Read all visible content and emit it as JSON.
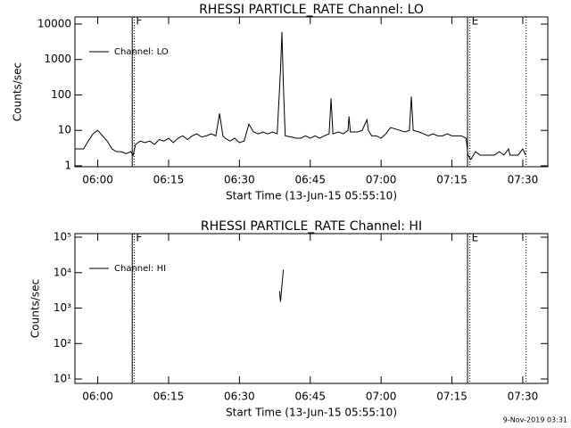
{
  "chart_data": [
    {
      "type": "line",
      "title": "RHESSI PARTICLE_RATE Channel: LO",
      "xlabel": "Start Time (13-Jun-15 05:55:10)",
      "ylabel": "Counts/sec",
      "log_y": true,
      "legend": "upper left",
      "xlim": [
        355.17,
        455.3
      ],
      "xticks": [
        {
          "value": 360,
          "label": "06:00"
        },
        {
          "value": 375,
          "label": "06:15"
        },
        {
          "value": 390,
          "label": "06:30"
        },
        {
          "value": 405,
          "label": "06:45"
        },
        {
          "value": 420,
          "label": "07:00"
        },
        {
          "value": 435,
          "label": "07:15"
        },
        {
          "value": 450,
          "label": "07:30"
        }
      ],
      "ylim": [
        0.94,
        15900
      ],
      "yticks": [
        1,
        10,
        100,
        1000,
        10000
      ],
      "vlines": [
        {
          "x": 367.3,
          "style": "solid"
        },
        {
          "x": 367.7,
          "style": "dotted",
          "label": "F"
        },
        {
          "x": 438.3,
          "style": "solid"
        },
        {
          "x": 438.8,
          "style": "dotted",
          "label": "E"
        },
        {
          "x": 450.7,
          "style": "dotted"
        }
      ],
      "x": [
        355.2,
        356,
        357,
        358,
        359,
        360,
        361,
        362,
        363,
        364,
        365,
        366,
        367,
        367.5,
        368,
        369,
        370,
        371,
        372,
        373,
        374,
        375,
        376,
        377,
        378,
        379,
        380,
        381,
        382,
        383,
        384,
        385,
        385.8,
        386.5,
        387,
        388,
        389,
        390,
        391,
        392,
        393,
        394,
        395,
        396,
        397,
        398,
        398.7,
        399,
        399.3,
        399.7,
        401,
        402,
        403,
        404,
        405,
        406,
        407,
        408,
        409,
        409.4,
        409.8,
        411,
        412,
        413,
        413.2,
        413.5,
        415,
        416,
        417,
        417.3,
        418,
        419,
        420,
        421,
        422,
        423,
        424,
        425,
        426,
        426.4,
        426.8,
        428,
        429,
        430,
        431,
        432,
        433,
        434,
        435,
        436,
        437,
        438,
        438.4,
        439,
        440,
        441,
        442,
        443,
        444,
        445,
        446,
        447,
        447.3,
        448,
        449,
        450,
        450.6
      ],
      "series": [
        {
          "name": "Channel: LO",
          "color": "#000000",
          "values": [
            3,
            3,
            3,
            5,
            8,
            10,
            7,
            5,
            3,
            2.5,
            2.5,
            2.2,
            2.5,
            2,
            4,
            5,
            4.5,
            5,
            4,
            5.5,
            5,
            6,
            4.5,
            6,
            7,
            5.5,
            7,
            8,
            6.5,
            7,
            8,
            7,
            30,
            7,
            6,
            5,
            6,
            4.5,
            5,
            15,
            9,
            8,
            9,
            8,
            9,
            8,
            500,
            6000,
            200,
            7,
            6.5,
            6,
            6,
            7,
            6,
            7,
            6,
            7,
            8,
            80,
            8,
            9,
            8,
            10,
            25,
            9,
            9,
            10,
            20,
            10,
            7,
            7,
            6,
            8,
            12,
            11,
            10,
            9,
            10,
            90,
            10,
            9,
            8,
            7,
            8,
            7,
            7,
            8,
            7,
            7,
            7,
            6,
            2,
            1.5,
            2.5,
            2,
            2,
            2,
            2,
            2.5,
            2,
            3,
            2,
            2,
            2,
            3,
            2
          ]
        }
      ]
    },
    {
      "type": "line",
      "title": "RHESSI PARTICLE_RATE Channel: HI",
      "xlabel": "Start Time (13-Jun-15 05:55:10)",
      "ylabel": "Counts/sec",
      "log_y": true,
      "legend": "upper left",
      "xlim": [
        355.17,
        455.3
      ],
      "xticks": [
        {
          "value": 360,
          "label": "06:00"
        },
        {
          "value": 375,
          "label": "06:15"
        },
        {
          "value": 390,
          "label": "06:30"
        },
        {
          "value": 405,
          "label": "06:45"
        },
        {
          "value": 420,
          "label": "07:00"
        },
        {
          "value": 435,
          "label": "07:15"
        },
        {
          "value": 450,
          "label": "07:30"
        }
      ],
      "ylim": [
        7.5,
        126000
      ],
      "yticks": [
        {
          "value": 10,
          "label": "10¹"
        },
        {
          "value": 100,
          "label": "10²"
        },
        {
          "value": 1000,
          "label": "10³"
        },
        {
          "value": 10000,
          "label": "10⁴"
        },
        {
          "value": 100000,
          "label": "10⁵"
        }
      ],
      "vlines": [
        {
          "x": 367.3,
          "style": "solid"
        },
        {
          "x": 367.7,
          "style": "dotted",
          "label": "F"
        },
        {
          "x": 438.3,
          "style": "solid"
        },
        {
          "x": 438.8,
          "style": "dotted",
          "label": "E"
        },
        {
          "x": 450.7,
          "style": "dotted"
        }
      ],
      "x": [
        398.5,
        398.7,
        399.3
      ],
      "series": [
        {
          "name": "Channel: HI",
          "color": "#000000",
          "values": [
            3000,
            1500,
            12000
          ]
        }
      ]
    }
  ],
  "footer": "9-Nov-2019 03:31"
}
